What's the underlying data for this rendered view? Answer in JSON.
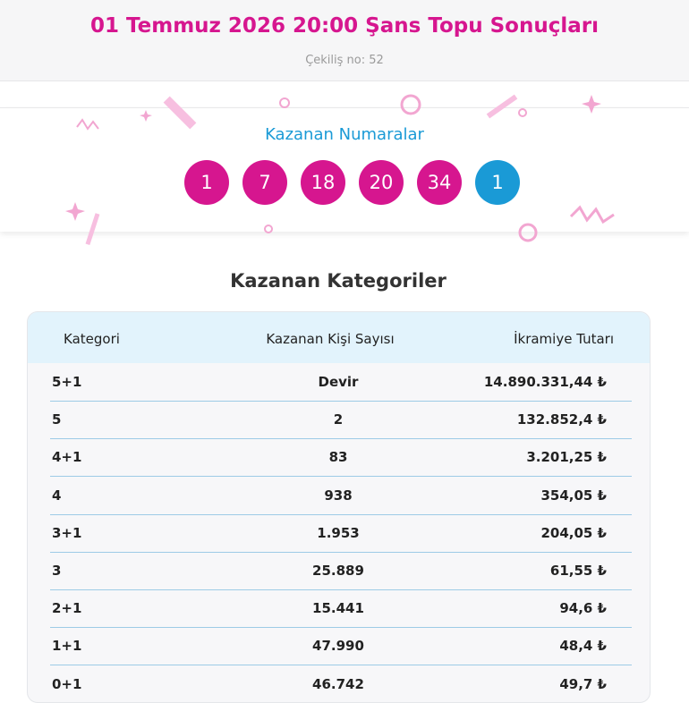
{
  "header": {
    "title": "01 Temmuz 2026 20:00 Şans Topu Sonuçları",
    "draw_no": "Çekiliş no: 52"
  },
  "winning_numbers": {
    "title": "Kazanan Numaralar",
    "numbers": [
      1,
      7,
      18,
      20,
      34
    ],
    "bonus": 1
  },
  "categories": {
    "title": "Kazanan Kategoriler",
    "columns": [
      "Kategori",
      "Kazanan Kişi Sayısı",
      "İkramiye Tutarı"
    ],
    "rows": [
      [
        "5+1",
        "Devir",
        "14.890.331,44 ₺"
      ],
      [
        "5",
        "2",
        "132.852,4 ₺"
      ],
      [
        "4+1",
        "83",
        "3.201,25 ₺"
      ],
      [
        "4",
        "938",
        "354,05 ₺"
      ],
      [
        "3+1",
        "1.953",
        "204,05 ₺"
      ],
      [
        "3",
        "25.889",
        "61,55 ₺"
      ],
      [
        "2+1",
        "15.441",
        "94,6 ₺"
      ],
      [
        "1+1",
        "47.990",
        "48,4 ₺"
      ],
      [
        "0+1",
        "46.742",
        "49,7 ₺"
      ]
    ]
  }
}
